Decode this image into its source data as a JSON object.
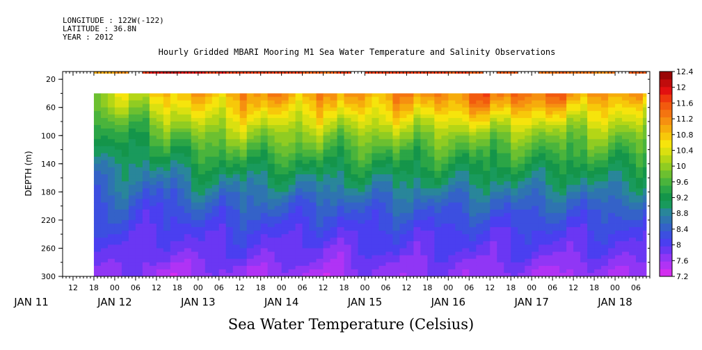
{
  "header": {
    "longitude": "LONGITUDE : 122W(-122)",
    "latitude": "LATITUDE : 36.8N",
    "year": "YEAR : 2012"
  },
  "chart_data": {
    "type": "heatmap",
    "title": "Hourly Gridded MBARI Mooring M1 Sea Water Temperature and Salinity Observations",
    "xlabel": "Sea Water Temperature (Celsius)",
    "ylabel": "DEPTH (m)",
    "hour_tick_labels": [
      "12",
      "18",
      "00",
      "06",
      "12",
      "18",
      "00",
      "06",
      "12",
      "18",
      "00",
      "06",
      "12",
      "18",
      "00",
      "06",
      "12",
      "18",
      "00",
      "06",
      "12",
      "18",
      "00",
      "06",
      "12",
      "18",
      "00",
      "06"
    ],
    "date_tick_labels": [
      "JAN 11",
      "JAN 12",
      "JAN 13",
      "JAN 14",
      "JAN 15",
      "JAN 16",
      "JAN 17",
      "JAN 18"
    ],
    "x_range": [
      "2012-01-11 09:00",
      "2012-01-18 10:00"
    ],
    "y_ticks": [
      20,
      60,
      100,
      140,
      180,
      220,
      260,
      300
    ],
    "ylim": [
      300,
      9
    ],
    "y_reversed": true,
    "data_start": "2012-01-11 18:00",
    "data_end": "2012-01-18 09:00",
    "surface_depth": 10,
    "profile_depth_top": 40,
    "colorbar": {
      "levels": [
        7.2,
        7.4,
        7.6,
        7.8,
        8.0,
        8.2,
        8.4,
        8.6,
        8.8,
        9.0,
        9.2,
        9.4,
        9.6,
        9.8,
        10.0,
        10.2,
        10.4,
        10.6,
        10.8,
        11.0,
        11.2,
        11.4,
        11.6,
        11.8,
        12.0,
        12.2,
        12.4
      ],
      "tick_labels": [
        "7.2",
        "7.6",
        "8",
        "8.4",
        "8.8",
        "9.2",
        "9.6",
        "10",
        "10.4",
        "10.8",
        "11.2",
        "11.6",
        "12",
        "12.4"
      ],
      "colors": [
        "#d32fef",
        "#b033f5",
        "#9036f5",
        "#6a37f3",
        "#4a3ff0",
        "#3c4fe0",
        "#3462c8",
        "#2e74b0",
        "#29869a",
        "#199a5c",
        "#14954a",
        "#2ba546",
        "#4ab43c",
        "#6cc030",
        "#90cc22",
        "#b4d616",
        "#dae010",
        "#f6e40c",
        "#f7c80a",
        "#f6ac0c",
        "#f69010",
        "#f47410",
        "#f25a0e",
        "#ee380e",
        "#e21010",
        "#c00c0c",
        "#9a0606"
      ]
    },
    "surface_series": {
      "description_values_by_hour": [
        {
          "x": "2012-01-11 18:00",
          "temp": 11.1
        },
        {
          "x": "2012-01-12 06:00",
          "temp": 11.3
        },
        {
          "x": "2012-01-12 12:00",
          "temp": 12.3
        },
        {
          "x": "2012-01-12 18:00",
          "temp": 12.2
        },
        {
          "x": "2012-01-13 00:00",
          "temp": 12.0
        },
        {
          "x": "2012-01-13 12:00",
          "temp": 11.9
        },
        {
          "x": "2012-01-14 00:00",
          "temp": 11.9
        },
        {
          "x": "2012-01-14 12:00",
          "temp": 11.6
        },
        {
          "x": "2012-01-15 00:00",
          "temp": 11.9
        },
        {
          "x": "2012-01-15 12:00",
          "temp": 11.9
        },
        {
          "x": "2012-01-16 00:00",
          "temp": 11.9
        },
        {
          "x": "2012-01-16 12:00",
          "temp": 11.8
        },
        {
          "x": "2012-01-17 00:00",
          "temp": 11.6
        },
        {
          "x": "2012-01-17 12:00",
          "temp": 11.5
        },
        {
          "x": "2012-01-18 00:00",
          "temp": 11.3
        },
        {
          "x": "2012-01-18 09:00",
          "temp": 11.7
        }
      ],
      "gaps": [
        [
          "2012-01-12 05:00",
          "2012-01-12 07:00"
        ],
        [
          "2012-01-14 21:00",
          "2012-01-15 00:00"
        ],
        [
          "2012-01-16 11:00",
          "2012-01-16 13:00"
        ],
        [
          "2012-01-16 21:00",
          "2012-01-17 01:00"
        ],
        [
          "2012-01-18 00:00",
          "2012-01-18 03:00"
        ]
      ]
    },
    "profile_series": {
      "depths": [
        40,
        60,
        80,
        100,
        120,
        140,
        160,
        180,
        200,
        220,
        240,
        260,
        280,
        300
      ],
      "columns": [
        {
          "x": "2012-01-11 18:00",
          "temps": [
            10.2,
            10.0,
            9.7,
            9.5,
            9.3,
            9.0,
            8.8,
            8.6,
            8.4,
            8.3,
            8.2,
            8.0,
            7.9,
            7.8
          ]
        },
        {
          "x": "2012-01-12 06:00",
          "temps": [
            10.5,
            10.2,
            9.8,
            9.5,
            9.2,
            9.0,
            8.8,
            8.6,
            8.4,
            8.3,
            8.1,
            8.0,
            7.9,
            7.8
          ]
        },
        {
          "x": "2012-01-12 12:00",
          "temps": [
            10.9,
            10.5,
            10.0,
            9.6,
            9.3,
            9.0,
            8.7,
            8.4,
            8.2,
            8.0,
            7.9,
            7.8,
            7.6,
            7.4
          ]
        },
        {
          "x": "2012-01-13 00:00",
          "temps": [
            11.0,
            10.7,
            10.4,
            10.0,
            9.7,
            9.4,
            9.1,
            8.8,
            8.5,
            8.3,
            8.1,
            8.0,
            7.8,
            7.7
          ]
        },
        {
          "x": "2012-01-13 12:00",
          "temps": [
            11.2,
            10.9,
            10.5,
            10.1,
            9.7,
            9.4,
            9.0,
            8.7,
            8.5,
            8.3,
            8.1,
            8.0,
            7.8,
            7.6
          ]
        },
        {
          "x": "2012-01-14 00:00",
          "temps": [
            11.3,
            10.9,
            10.5,
            10.1,
            9.8,
            9.4,
            9.1,
            8.8,
            8.5,
            8.3,
            8.1,
            8.0,
            7.8,
            7.6
          ]
        },
        {
          "x": "2012-01-14 12:00",
          "temps": [
            11.2,
            10.8,
            10.4,
            10.0,
            9.7,
            9.4,
            9.0,
            8.7,
            8.4,
            8.2,
            8.0,
            7.8,
            7.7,
            7.5
          ]
        },
        {
          "x": "2012-01-15 00:00",
          "temps": [
            11.2,
            10.9,
            10.5,
            10.0,
            9.7,
            9.4,
            9.1,
            8.8,
            8.5,
            8.3,
            8.1,
            8.0,
            7.8,
            7.7
          ]
        },
        {
          "x": "2012-01-15 12:00",
          "temps": [
            11.3,
            10.9,
            10.5,
            10.1,
            9.7,
            9.4,
            9.1,
            8.8,
            8.5,
            8.3,
            8.1,
            8.0,
            7.8,
            7.7
          ]
        },
        {
          "x": "2012-01-16 00:00",
          "temps": [
            11.4,
            11.0,
            10.5,
            10.0,
            9.7,
            9.4,
            9.1,
            8.8,
            8.5,
            8.3,
            8.1,
            8.0,
            7.8,
            7.7
          ]
        },
        {
          "x": "2012-01-16 12:00",
          "temps": [
            11.6,
            11.2,
            10.6,
            10.1,
            9.7,
            9.4,
            9.1,
            8.8,
            8.5,
            8.3,
            8.1,
            8.0,
            7.8,
            7.7
          ]
        },
        {
          "x": "2012-01-17 00:00",
          "temps": [
            11.6,
            11.1,
            10.5,
            10.0,
            9.7,
            9.4,
            9.1,
            8.8,
            8.5,
            8.3,
            8.1,
            8.0,
            7.8,
            7.6
          ]
        },
        {
          "x": "2012-01-17 12:00",
          "temps": [
            11.4,
            10.9,
            10.4,
            10.0,
            9.7,
            9.4,
            9.1,
            8.8,
            8.5,
            8.3,
            8.1,
            7.9,
            7.7,
            7.5
          ]
        },
        {
          "x": "2012-01-18 00:00",
          "temps": [
            11.2,
            10.8,
            10.4,
            10.0,
            9.7,
            9.4,
            9.1,
            8.8,
            8.5,
            8.3,
            8.1,
            8.0,
            7.8,
            7.7
          ]
        },
        {
          "x": "2012-01-18 09:00",
          "temps": [
            11.0,
            10.6,
            10.3,
            10.0,
            9.7,
            9.4,
            9.1,
            8.8,
            8.5,
            8.3,
            8.1,
            8.0,
            7.8,
            7.6
          ]
        }
      ]
    },
    "grid": false,
    "legend": "colorbar-right"
  }
}
